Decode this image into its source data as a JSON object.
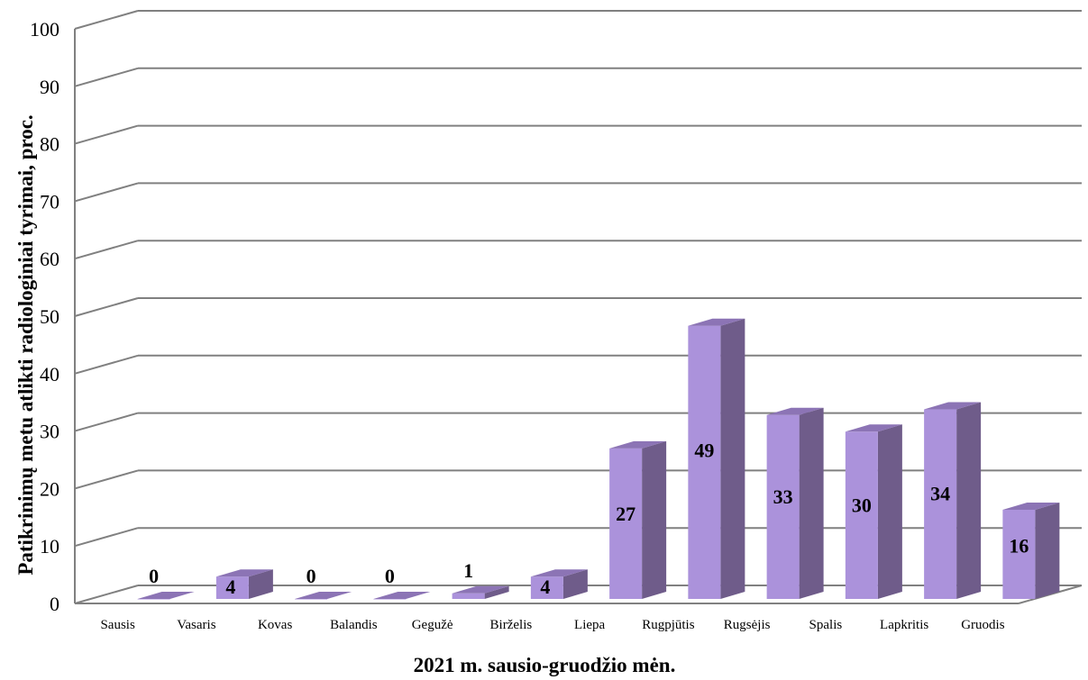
{
  "chart_data": {
    "type": "bar",
    "title": "",
    "xlabel": "2021 m. sausio-gruodžio mėn.",
    "ylabel": "Patikrinimų metu atlikti radiologiniai tyrimai, proc.",
    "categories": [
      "Sausis",
      "Vasaris",
      "Kovas",
      "Balandis",
      "Gegužė",
      "Birželis",
      "Liepa",
      "Rugpjūtis",
      "Rugsėjis",
      "Spalis",
      "Lapkritis",
      "Gruodis"
    ],
    "values": [
      0,
      4,
      0,
      0,
      1,
      4,
      27,
      49,
      33,
      30,
      34,
      16
    ],
    "data_labels": [
      "0",
      "4",
      "0",
      "0",
      "1",
      "4",
      "27",
      "49",
      "33",
      "30",
      "34",
      "16"
    ],
    "ylim": [
      0,
      100
    ],
    "yticks": [
      "0",
      "10",
      "20",
      "30",
      "40",
      "50",
      "60",
      "70",
      "80",
      "90",
      "100"
    ],
    "grid": true,
    "legend": "none",
    "colors": {
      "bar_front": "#AB92DB",
      "bar_side": "#6F5C8A",
      "bar_top": "#8C74B5",
      "grid": "#808080"
    }
  }
}
